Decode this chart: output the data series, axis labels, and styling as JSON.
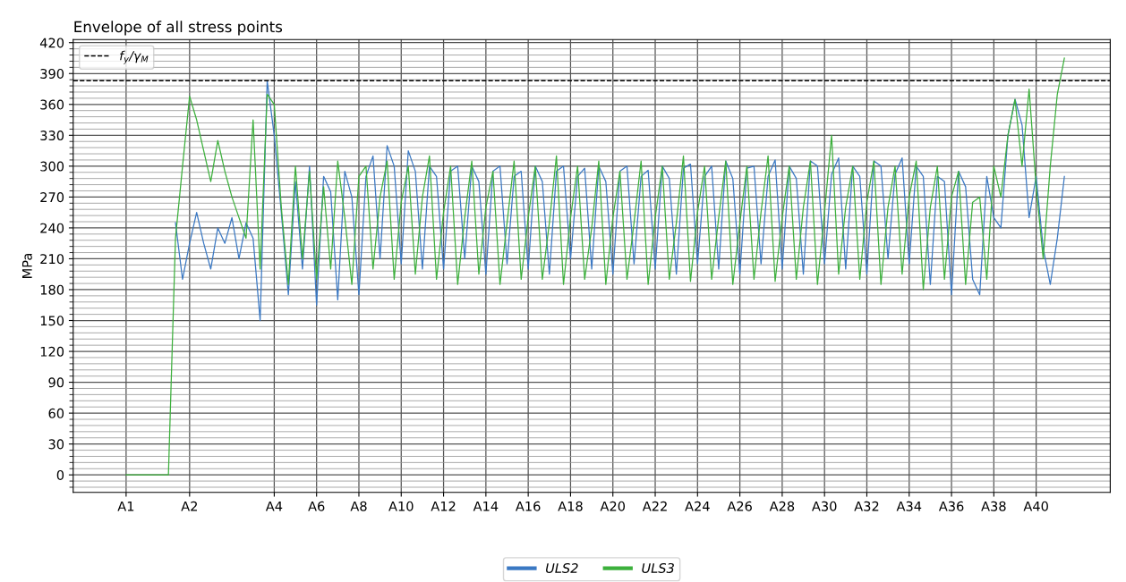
{
  "chart_data": {
    "type": "line",
    "title": "Envelope of all stress points",
    "ylabel": "MPa",
    "categories": [
      null,
      null,
      null,
      null,
      null,
      null,
      null,
      "A1",
      null,
      null,
      null,
      null,
      null,
      null,
      null,
      null,
      "A2",
      null,
      null,
      null,
      null,
      null,
      null,
      null,
      null,
      null,
      null,
      null,
      "A4",
      null,
      null,
      null,
      null,
      null,
      "A6",
      null,
      null,
      null,
      null,
      null,
      "A8",
      null,
      null,
      null,
      null,
      null,
      "A10",
      null,
      null,
      null,
      null,
      null,
      "A12",
      null,
      null,
      null,
      null,
      null,
      "A14",
      null,
      null,
      null,
      null,
      null,
      "A16",
      null,
      null,
      null,
      null,
      null,
      "A18",
      null,
      null,
      null,
      null,
      null,
      "A20",
      null,
      null,
      null,
      null,
      null,
      "A22",
      null,
      null,
      null,
      null,
      null,
      "A24",
      null,
      null,
      null,
      null,
      null,
      "A26",
      null,
      null,
      null,
      null,
      null,
      "A28",
      null,
      null,
      null,
      null,
      null,
      "A30",
      null,
      null,
      null,
      null,
      null,
      "A32",
      null,
      null,
      null,
      null,
      null,
      "A34",
      null,
      null,
      null,
      null,
      null,
      "A36",
      null,
      null,
      null,
      null,
      null,
      "A38",
      null,
      null,
      null,
      null,
      null,
      "A40",
      null,
      null,
      null,
      null,
      null,
      null,
      null,
      null,
      null,
      null
    ],
    "series": [
      {
        "name": "ULS2",
        "color": "#3a78c3",
        "values": [
          null,
          null,
          null,
          null,
          null,
          null,
          null,
          null,
          null,
          null,
          null,
          null,
          null,
          null,
          245,
          190,
          225,
          255,
          225,
          200,
          240,
          225,
          250,
          210,
          245,
          230,
          150,
          383,
          330,
          255,
          175,
          285,
          200,
          300,
          165,
          290,
          275,
          170,
          295,
          270,
          175,
          290,
          310,
          210,
          320,
          300,
          205,
          315,
          295,
          200,
          300,
          290,
          200,
          295,
          300,
          210,
          300,
          285,
          195,
          295,
          300,
          205,
          290,
          295,
          200,
          300,
          285,
          195,
          295,
          300,
          210,
          290,
          298,
          200,
          300,
          285,
          195,
          295,
          300,
          205,
          290,
          296,
          200,
          300,
          288,
          195,
          298,
          302,
          205,
          290,
          300,
          200,
          305,
          288,
          195,
          298,
          300,
          205,
          290,
          306,
          200,
          300,
          288,
          195,
          305,
          300,
          205,
          292,
          308,
          200,
          300,
          290,
          195,
          305,
          300,
          210,
          292,
          308,
          205,
          300,
          290,
          185,
          290,
          285,
          175,
          295,
          280,
          190,
          175,
          290,
          250,
          240,
          330,
          365,
          340,
          250,
          290,
          220,
          185,
          230,
          290,
          null,
          null,
          null,
          null,
          null,
          null
        ]
      },
      {
        "name": "ULS3",
        "color": "#3cb03c",
        "values": [
          null,
          null,
          null,
          null,
          null,
          null,
          null,
          0,
          0,
          0,
          0,
          0,
          0,
          0,
          230,
          300,
          368,
          345,
          315,
          285,
          325,
          295,
          270,
          250,
          230,
          345,
          200,
          370,
          360,
          260,
          185,
          300,
          210,
          295,
          190,
          280,
          200,
          305,
          250,
          185,
          290,
          300,
          200,
          270,
          305,
          190,
          265,
          300,
          195,
          270,
          310,
          190,
          255,
          300,
          185,
          250,
          305,
          195,
          260,
          295,
          185,
          245,
          305,
          190,
          250,
          300,
          190,
          245,
          310,
          185,
          250,
          300,
          190,
          240,
          305,
          185,
          250,
          295,
          190,
          245,
          305,
          185,
          250,
          300,
          190,
          245,
          310,
          188,
          255,
          300,
          190,
          250,
          305,
          185,
          245,
          300,
          190,
          255,
          310,
          188,
          250,
          300,
          190,
          260,
          305,
          185,
          255,
          330,
          195,
          260,
          300,
          190,
          265,
          305,
          185,
          260,
          300,
          195,
          270,
          305,
          180,
          260,
          300,
          190,
          270,
          295,
          185,
          265,
          270,
          190,
          300,
          270,
          330,
          365,
          300,
          375,
          280,
          210,
          300,
          370,
          405,
          null,
          null,
          null,
          null,
          null,
          null
        ]
      }
    ],
    "ylim": [
      -17,
      423
    ],
    "yticks": [
      {
        "value": -12,
        "label": null
      },
      {
        "value": -6,
        "label": null
      },
      0,
      {
        "value": 6,
        "label": null
      },
      {
        "value": 12,
        "label": null
      },
      {
        "value": 18,
        "label": null
      },
      {
        "value": 24,
        "label": null
      },
      30,
      {
        "value": 36,
        "label": null
      },
      {
        "value": 42,
        "label": null
      },
      {
        "value": 48,
        "label": null
      },
      {
        "value": 54,
        "label": null
      },
      60,
      {
        "value": 66,
        "label": null
      },
      {
        "value": 72,
        "label": null
      },
      {
        "value": 78,
        "label": null
      },
      {
        "value": 84,
        "label": null
      },
      90,
      {
        "value": 96,
        "label": null
      },
      {
        "value": 102,
        "label": null
      },
      {
        "value": 108,
        "label": null
      },
      {
        "value": 114,
        "label": null
      },
      120,
      {
        "value": 126,
        "label": null
      },
      {
        "value": 132,
        "label": null
      },
      {
        "value": 138,
        "label": null
      },
      {
        "value": 144,
        "label": null
      },
      150,
      {
        "value": 156,
        "label": null
      },
      {
        "value": 162,
        "label": null
      },
      {
        "value": 168,
        "label": null
      },
      {
        "value": 174,
        "label": null
      },
      180,
      {
        "value": 186,
        "label": null
      },
      {
        "value": 192,
        "label": null
      },
      {
        "value": 198,
        "label": null
      },
      {
        "value": 204,
        "label": null
      },
      210,
      {
        "value": 216,
        "label": null
      },
      {
        "value": 222,
        "label": null
      },
      {
        "value": 228,
        "label": null
      },
      {
        "value": 234,
        "label": null
      },
      240,
      {
        "value": 246,
        "label": null
      },
      {
        "value": 252,
        "label": null
      },
      {
        "value": 258,
        "label": null
      },
      {
        "value": 264,
        "label": null
      },
      270,
      {
        "value": 276,
        "label": null
      },
      {
        "value": 282,
        "label": null
      },
      {
        "value": 288,
        "label": null
      },
      {
        "value": 294,
        "label": null
      },
      300,
      {
        "value": 306,
        "label": null
      },
      {
        "value": 312,
        "label": null
      },
      {
        "value": 318,
        "label": null
      },
      {
        "value": 324,
        "label": null
      },
      330,
      {
        "value": 336,
        "label": null
      },
      {
        "value": 342,
        "label": null
      },
      {
        "value": 348,
        "label": null
      },
      {
        "value": 354,
        "label": null
      },
      360,
      {
        "value": 366,
        "label": null
      },
      {
        "value": 372,
        "label": null
      },
      {
        "value": 378,
        "label": null
      },
      {
        "value": 384,
        "label": null
      },
      390,
      {
        "value": 396,
        "label": null
      },
      {
        "value": 402,
        "label": null
      },
      {
        "value": 408,
        "label": null
      },
      {
        "value": 414,
        "label": null
      },
      420
    ],
    "ref_lines": [
      {
        "axis": "y",
        "value": 383,
        "label": "f$_{y}$/γ$_{M}$",
        "color": "#000000",
        "line_style": "dashed"
      }
    ],
    "grid": true,
    "legend": "bottom"
  }
}
